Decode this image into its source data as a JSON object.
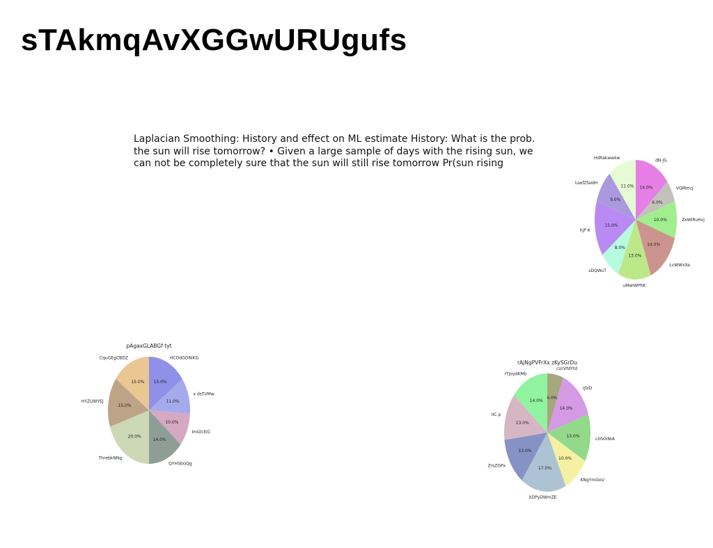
{
  "slide": {
    "title": "sTAkmqAvXGGwURUgufs",
    "body": "Laplacian Smoothing: History and effect on ML estimate History: What is the prob. the sun will rise tomorrow? • Given a large sample of days with the rising sun, we can not be completely sure that the sun will still rise tomorrow Pr(sun rising"
  },
  "chart_data": [
    {
      "type": "pie",
      "title": "",
      "start_angle": 90,
      "direction": "clockwise",
      "categories": [
        "dN   JG",
        "VQMmcj",
        "ZxWIRuHvj",
        "LvWWxXe",
        "uMwIWPhK",
        "sDQWuT",
        "hjP K",
        "luwfZfaIdH",
        "HdRakwwkw"
      ],
      "values": [
        14.0,
        6.0,
        10.0,
        14.0,
        13.0,
        8.0,
        15.0,
        9.0,
        11.0
      ],
      "labels": [
        "14.0%",
        "6.0%",
        "10.0%",
        "14.0%",
        "13.0%",
        "8.0%",
        "15.0%",
        "9.0%",
        "11.0%"
      ],
      "colors": [
        "#e57fe6",
        "#c2c2bb",
        "#a0ee8e",
        "#cc948e",
        "#bde88a",
        "#b6fae0",
        "#b98af4",
        "#aa99dc",
        "#e4fbd3"
      ]
    },
    {
      "type": "pie",
      "title": "pAgaxGLABGf tyt",
      "start_angle": 90,
      "direction": "clockwise",
      "categories": [
        "HCOdGDNiKG",
        "x dsTVMw",
        "ImGlcttG",
        "QYHSbGQg",
        "ThrebkNNg",
        "HYZUWYEJ",
        "CquGEgCBDZ"
      ],
      "values": [
        15.0,
        11.0,
        10.0,
        14.0,
        20.0,
        15.0,
        15.0
      ],
      "labels": [
        "15.0%",
        "11.0%",
        "10.0%",
        "14.0%",
        "20.0%",
        "15.0%",
        "15.0%"
      ],
      "colors": [
        "#8e91e6",
        "#a5aaec",
        "#d5a9c2",
        "#8e9e97",
        "#ccd8b6",
        "#bda486",
        "#e9c692"
      ]
    },
    {
      "type": "pie",
      "title": "rAjNgPVFrXx zKySGrDu",
      "start_angle": 90,
      "direction": "clockwise",
      "categories": [
        "cUrVfdYtd",
        "rJlzD",
        "LhhOiNIA",
        "KNgYmGoU",
        "XDPyDWmZE",
        "ZrsZGPx",
        "IIC p",
        "rTJoydKMb"
      ],
      "values": [
        6.0,
        14.0,
        13.0,
        10.0,
        17.0,
        13.0,
        13.0,
        14.0
      ],
      "labels": [
        "6.0%",
        "14.0%",
        "13.0%",
        "10.0%",
        "17.0%",
        "13.0%",
        "13.0%",
        "14.0%"
      ],
      "colors": [
        "#a7a77e",
        "#d49ae3",
        "#92d98a",
        "#f4f1a2",
        "#adc3d4",
        "#8692c4",
        "#d7b6c3",
        "#8ff39f"
      ]
    }
  ]
}
